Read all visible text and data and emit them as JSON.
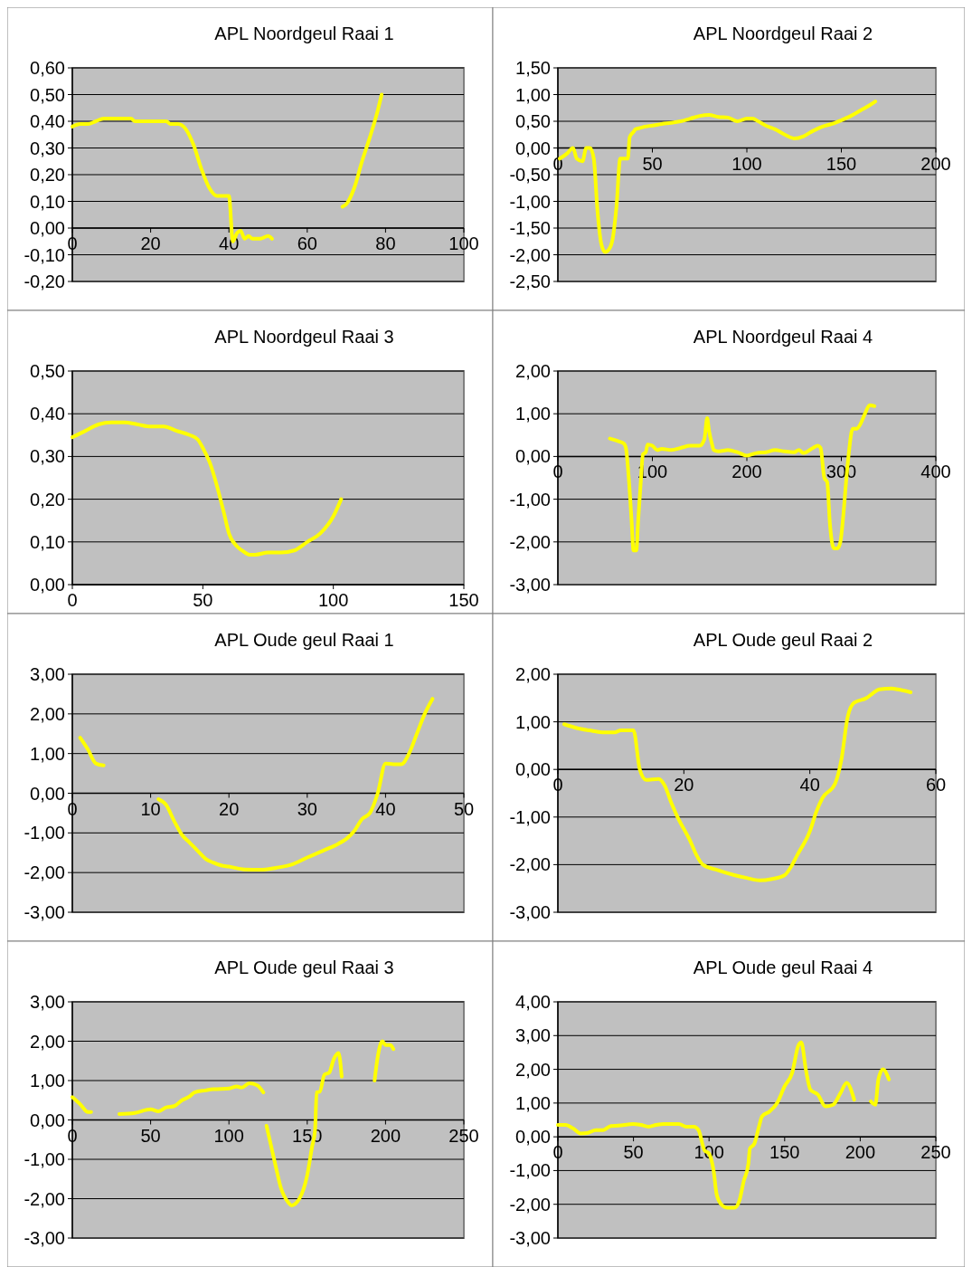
{
  "chart_data": [
    {
      "type": "line",
      "title": "APL Noordgeul Raai 1",
      "color": "#ffff00",
      "grid": "y",
      "xlim": [
        0,
        100
      ],
      "xticks": [
        0,
        20,
        40,
        60,
        80,
        100
      ],
      "ylim": [
        -0.2,
        0.6
      ],
      "yticks": [
        {
          "value": -0.2,
          "label": "-0,20"
        },
        {
          "value": -0.1,
          "label": "-0,10"
        },
        {
          "value": 0,
          "label": "0,00"
        },
        {
          "value": 0.1,
          "label": "0,10"
        },
        {
          "value": 0.2,
          "label": "0,20"
        },
        {
          "value": 0.3,
          "label": "0,30"
        },
        {
          "value": 0.4,
          "label": "0,40"
        },
        {
          "value": 0.5,
          "label": "0,50"
        },
        {
          "value": 0.6,
          "label": "0,60"
        }
      ],
      "x": [
        0,
        2,
        4,
        6,
        8,
        10,
        15,
        16,
        20,
        24,
        25,
        27,
        29,
        31,
        33,
        35,
        37,
        40,
        41,
        42,
        43,
        44,
        45,
        46,
        48,
        50,
        51,
        60,
        69,
        70,
        72,
        74,
        76,
        78,
        79
      ],
      "values": [
        0.38,
        0.39,
        0.39,
        0.4,
        0.41,
        0.41,
        0.41,
        0.4,
        0.4,
        0.4,
        0.39,
        0.39,
        0.37,
        0.31,
        0.22,
        0.15,
        0.12,
        0.12,
        -0.05,
        -0.02,
        -0.01,
        -0.04,
        -0.03,
        -0.04,
        -0.04,
        -0.03,
        -0.04,
        null,
        0.08,
        0.09,
        0.15,
        0.25,
        0.34,
        0.44,
        0.5
      ]
    },
    {
      "type": "line",
      "title": "APL Noordgeul Raai 2",
      "color": "#ffff00",
      "grid": "y",
      "xlim": [
        0,
        200
      ],
      "xticks": [
        0,
        50,
        100,
        150,
        200
      ],
      "ylim": [
        -2.5,
        1.5
      ],
      "yticks": [
        {
          "value": -2.5,
          "label": "-2,50"
        },
        {
          "value": -2,
          "label": "-2,00"
        },
        {
          "value": -1.5,
          "label": "-1,50"
        },
        {
          "value": -1,
          "label": "-1,00"
        },
        {
          "value": -0.5,
          "label": "-0,50"
        },
        {
          "value": 0,
          "label": "0,00"
        },
        {
          "value": 0.5,
          "label": "0,50"
        },
        {
          "value": 1,
          "label": "1,00"
        },
        {
          "value": 1.5,
          "label": "1,50"
        }
      ],
      "x": [
        1,
        5,
        8,
        10,
        13,
        15,
        17,
        19,
        21,
        23,
        25,
        27,
        29,
        31,
        33,
        35,
        37,
        38,
        40,
        41,
        43,
        46,
        50,
        55,
        60,
        65,
        70,
        75,
        80,
        85,
        90,
        95,
        100,
        103,
        106,
        110,
        115,
        120,
        125,
        130,
        135,
        140,
        145,
        150,
        155,
        160,
        165,
        168
      ],
      "values": [
        -0.2,
        -0.1,
        0,
        -0.2,
        -0.25,
        0,
        0,
        -0.2,
        -1.2,
        -1.8,
        -1.95,
        -1.9,
        -1.7,
        -1.1,
        -0.2,
        -0.2,
        -0.2,
        0.2,
        0.3,
        0.35,
        0.37,
        0.4,
        0.42,
        0.45,
        0.47,
        0.5,
        0.55,
        0.6,
        0.62,
        0.58,
        0.57,
        0.5,
        0.55,
        0.55,
        0.5,
        0.42,
        0.35,
        0.25,
        0.18,
        0.22,
        0.32,
        0.4,
        0.45,
        0.52,
        0.6,
        0.7,
        0.8,
        0.87
      ]
    },
    {
      "type": "line",
      "title": "APL Noordgeul Raai 3",
      "color": "#ffff00",
      "grid": "y",
      "xlim": [
        0,
        150
      ],
      "xticks": [
        0,
        50,
        100,
        150
      ],
      "ylim": [
        0,
        0.5
      ],
      "yticks": [
        {
          "value": 0,
          "label": "0,00"
        },
        {
          "value": 0.1,
          "label": "0,10"
        },
        {
          "value": 0.2,
          "label": "0,20"
        },
        {
          "value": 0.3,
          "label": "0,30"
        },
        {
          "value": 0.4,
          "label": "0,40"
        },
        {
          "value": 0.5,
          "label": "0,50"
        }
      ],
      "x": [
        0,
        5,
        10,
        15,
        20,
        25,
        30,
        35,
        40,
        45,
        48,
        50,
        53,
        55,
        58,
        60,
        63,
        65,
        68,
        70,
        75,
        80,
        85,
        90,
        95,
        100,
        103
      ],
      "values": [
        0.345,
        0.36,
        0.375,
        0.38,
        0.38,
        0.375,
        0.37,
        0.37,
        0.36,
        0.35,
        0.34,
        0.32,
        0.28,
        0.24,
        0.17,
        0.12,
        0.09,
        0.08,
        0.07,
        0.07,
        0.075,
        0.075,
        0.08,
        0.1,
        0.12,
        0.16,
        0.2
      ]
    },
    {
      "type": "line",
      "title": "APL Noordgeul Raai 4",
      "color": "#ffff00",
      "grid": "y",
      "xlim": [
        0,
        400
      ],
      "xticks": [
        0,
        100,
        200,
        300,
        400
      ],
      "ylim": [
        -3,
        2
      ],
      "yticks": [
        {
          "value": -3,
          "label": "-3,00"
        },
        {
          "value": -2,
          "label": "-2,00"
        },
        {
          "value": -1,
          "label": "-1,00"
        },
        {
          "value": 0,
          "label": "0,00"
        },
        {
          "value": 1,
          "label": "1,00"
        },
        {
          "value": 2,
          "label": "2,00"
        }
      ],
      "x": [
        55,
        65,
        70,
        72,
        75,
        78,
        80,
        83,
        85,
        88,
        90,
        93,
        95,
        100,
        105,
        110,
        120,
        130,
        140,
        150,
        155,
        158,
        160,
        163,
        165,
        170,
        180,
        190,
        200,
        210,
        220,
        230,
        240,
        250,
        255,
        260,
        270,
        275,
        278,
        282,
        285,
        288,
        292,
        296,
        299,
        302,
        305,
        308,
        312,
        316,
        320,
        325,
        330,
        335
      ],
      "values": [
        0.42,
        0.35,
        0.3,
        0.2,
        -0.5,
        -1.5,
        -2.2,
        -2.2,
        -1.5,
        -0.5,
        0.05,
        0.1,
        0.28,
        0.25,
        0.15,
        0.18,
        0.15,
        0.2,
        0.25,
        0.25,
        0.4,
        0.9,
        0.6,
        0.3,
        0.15,
        0.12,
        0.15,
        0.1,
        0.02,
        0.08,
        0.1,
        0.15,
        0.12,
        0.1,
        0.15,
        0.08,
        0.2,
        0.25,
        0.2,
        -0.5,
        -0.6,
        -1.6,
        -2.15,
        -2.15,
        -2.0,
        -1.4,
        -0.6,
        0.1,
        0.65,
        0.65,
        0.75,
        1.0,
        1.2,
        1.18
      ]
    },
    {
      "type": "line",
      "title": "APL Oude geul Raai 1",
      "color": "#ffff00",
      "grid": "y",
      "xlim": [
        0,
        50
      ],
      "xticks": [
        0,
        10,
        20,
        30,
        40,
        50
      ],
      "ylim": [
        -3,
        3
      ],
      "yticks": [
        {
          "value": -3,
          "label": "-3,00"
        },
        {
          "value": -2,
          "label": "-2,00"
        },
        {
          "value": -1,
          "label": "-1,00"
        },
        {
          "value": 0,
          "label": "0,00"
        },
        {
          "value": 1,
          "label": "1,00"
        },
        {
          "value": 2,
          "label": "2,00"
        },
        {
          "value": 3,
          "label": "3,00"
        }
      ],
      "x": [
        1,
        2,
        3,
        4,
        7,
        11,
        12,
        13,
        14,
        15,
        16,
        17,
        18,
        19,
        20,
        22,
        24,
        26,
        28,
        30,
        32,
        34,
        35,
        36,
        37,
        38,
        39,
        40,
        41,
        42,
        43,
        44,
        45,
        46
      ],
      "values": [
        1.4,
        1.1,
        0.75,
        0.7,
        null,
        -0.15,
        -0.3,
        -0.7,
        -1.05,
        -1.25,
        -1.45,
        -1.65,
        -1.75,
        -1.82,
        -1.85,
        -1.92,
        -1.93,
        -1.88,
        -1.8,
        -1.62,
        -1.45,
        -1.27,
        -1.15,
        -0.95,
        -0.65,
        -0.5,
        0,
        0.75,
        0.73,
        0.73,
        1.0,
        1.5,
        2.0,
        2.38
      ]
    },
    {
      "type": "line",
      "title": "APL Oude geul Raai 2",
      "color": "#ffff00",
      "grid": "y",
      "xlim": [
        0,
        60
      ],
      "xticks": [
        0,
        20,
        40,
        60
      ],
      "ylim": [
        -3,
        2
      ],
      "yticks": [
        {
          "value": -3,
          "label": "-3,00"
        },
        {
          "value": -2,
          "label": "-2,00"
        },
        {
          "value": -1,
          "label": "-1,00"
        },
        {
          "value": 0,
          "label": "0,00"
        },
        {
          "value": 1,
          "label": "1,00"
        },
        {
          "value": 2,
          "label": "2,00"
        }
      ],
      "x": [
        1,
        3,
        5,
        7,
        9,
        10,
        12,
        13,
        14,
        16,
        17,
        18,
        19,
        21,
        22,
        23,
        25,
        28,
        30,
        32,
        34,
        36,
        37,
        38,
        40,
        41,
        42,
        44,
        45,
        46,
        47,
        49,
        50,
        51,
        53,
        54,
        56
      ],
      "values": [
        0.95,
        0.87,
        0.82,
        0.78,
        0.78,
        0.82,
        0.82,
        0,
        -0.22,
        -0.2,
        -0.35,
        -0.7,
        -1.0,
        -1.5,
        -1.8,
        -2.0,
        -2.1,
        -2.22,
        -2.28,
        -2.33,
        -2.3,
        -2.22,
        -2.05,
        -1.8,
        -1.3,
        -0.9,
        -0.6,
        -0.3,
        0.2,
        1.1,
        1.4,
        1.5,
        1.6,
        1.68,
        1.7,
        1.68,
        1.62
      ]
    },
    {
      "type": "line",
      "title": "APL Oude geul Raai 3",
      "color": "#ffff00",
      "grid": "y",
      "xlim": [
        0,
        250
      ],
      "xticks": [
        0,
        50,
        100,
        150,
        200,
        250
      ],
      "ylim": [
        -3,
        3
      ],
      "yticks": [
        {
          "value": -3,
          "label": "-3,00"
        },
        {
          "value": -2,
          "label": "-2,00"
        },
        {
          "value": -1,
          "label": "-1,00"
        },
        {
          "value": 0,
          "label": "0,00"
        },
        {
          "value": 1,
          "label": "1,00"
        },
        {
          "value": 2,
          "label": "2,00"
        },
        {
          "value": 3,
          "label": "3,00"
        }
      ],
      "x": [
        0,
        5,
        10,
        12,
        20,
        30,
        40,
        50,
        55,
        60,
        65,
        70,
        75,
        78,
        85,
        90,
        100,
        105,
        108,
        113,
        118,
        122,
        123,
        124,
        130,
        133,
        138,
        140,
        145,
        150,
        153,
        155,
        156,
        158,
        161,
        164,
        167,
        170,
        172,
        180,
        193,
        195,
        198,
        200,
        203,
        205
      ],
      "values": [
        0.58,
        0.4,
        0.2,
        0.2,
        null,
        0.15,
        0.18,
        0.27,
        0.22,
        0.32,
        0.35,
        0.5,
        0.6,
        0.7,
        0.75,
        0.78,
        0.8,
        0.85,
        0.82,
        0.93,
        0.88,
        0.7,
        null,
        -0.15,
        -1.2,
        -1.7,
        -2.1,
        -2.17,
        -2.0,
        -1.4,
        -0.7,
        -0.25,
        0.7,
        0.72,
        1.15,
        1.2,
        1.55,
        1.7,
        1.1,
        null,
        1.0,
        1.6,
        2.0,
        1.9,
        1.9,
        1.8
      ]
    },
    {
      "type": "line",
      "title": "APL Oude geul Raai 4",
      "color": "#ffff00",
      "grid": "y",
      "xlim": [
        0,
        250
      ],
      "xticks": [
        0,
        50,
        100,
        150,
        200,
        250
      ],
      "ylim": [
        -3,
        4
      ],
      "yticks": [
        {
          "value": -3,
          "label": "-3,00"
        },
        {
          "value": -2,
          "label": "-2,00"
        },
        {
          "value": -1,
          "label": "-1,00"
        },
        {
          "value": 0,
          "label": "0,00"
        },
        {
          "value": 1,
          "label": "1,00"
        },
        {
          "value": 2,
          "label": "2,00"
        },
        {
          "value": 3,
          "label": "3,00"
        },
        {
          "value": 4,
          "label": "4,00"
        }
      ],
      "x": [
        0,
        5,
        10,
        15,
        20,
        25,
        30,
        35,
        40,
        50,
        55,
        60,
        65,
        70,
        80,
        85,
        90,
        93,
        97,
        100,
        103,
        105,
        108,
        112,
        117,
        120,
        123,
        126,
        127,
        130,
        133,
        135,
        140,
        145,
        150,
        155,
        159,
        161,
        164,
        167,
        172,
        177,
        182,
        187,
        191,
        196,
        200,
        207,
        210,
        212,
        215,
        219
      ],
      "values": [
        0.35,
        0.35,
        0.25,
        0.1,
        0.12,
        0.2,
        0.2,
        0.32,
        0.33,
        0.38,
        0.35,
        0.3,
        0.35,
        0.38,
        0.38,
        0.3,
        0.3,
        0.2,
        -0.4,
        -0.5,
        -1.0,
        -1.7,
        -2.0,
        -2.1,
        -2.1,
        -1.9,
        -1.3,
        -0.8,
        -0.35,
        -0.2,
        0.3,
        0.6,
        0.75,
        1.0,
        1.5,
        1.9,
        2.7,
        2.8,
        2.0,
        1.4,
        1.25,
        0.9,
        0.95,
        1.3,
        1.6,
        1.1,
        null,
        1.05,
        0.95,
        1.7,
        2.0,
        1.7
      ]
    }
  ]
}
